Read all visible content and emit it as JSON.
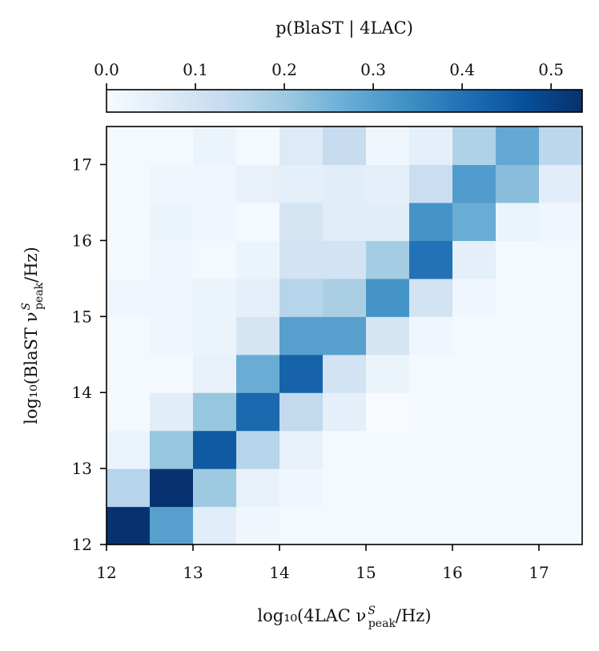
{
  "chart_data": {
    "type": "heatmap",
    "title": "",
    "xlabel": "log₁₀(4LAC ν",
    "ylabel": "log₁₀(BlaST ν",
    "label_sup": "S",
    "label_sub": "peak",
    "label_suffix": "/Hz)",
    "x_range": [
      12,
      17.5
    ],
    "y_range": [
      12,
      17.5
    ],
    "bin_width": 0.5,
    "x_ticks": [
      12,
      13,
      14,
      15,
      16,
      17
    ],
    "y_ticks": [
      12,
      13,
      14,
      15,
      16,
      17
    ],
    "colorbar": {
      "label": "p(BlaST | 4LAC)",
      "range": [
        0,
        0.535
      ],
      "ticks": [
        "0.0",
        "0.1",
        "0.2",
        "0.3",
        "0.4",
        "0.5"
      ],
      "tick_values": [
        0.0,
        0.1,
        0.2,
        0.3,
        0.4,
        0.5
      ],
      "colormap": "Blues"
    },
    "rows_note": "each row is one y bin, from y=12.0 (bottom) to y=17.0 (top); each value is for x bins 12.0 ... 17.0",
    "values": [
      [
        0.53,
        0.3,
        0.06,
        0.02,
        0.01,
        0.01,
        0.01,
        0.01,
        0.01,
        0.01,
        0.01
      ],
      [
        0.16,
        0.53,
        0.2,
        0.04,
        0.02,
        0.01,
        0.01,
        0.01,
        0.01,
        0.01,
        0.01
      ],
      [
        0.03,
        0.21,
        0.45,
        0.16,
        0.04,
        0.01,
        0.01,
        0.01,
        0.01,
        0.01,
        0.01
      ],
      [
        0.01,
        0.06,
        0.21,
        0.42,
        0.14,
        0.05,
        0.0,
        0.01,
        0.01,
        0.01,
        0.01
      ],
      [
        0.01,
        0.01,
        0.04,
        0.27,
        0.43,
        0.1,
        0.03,
        0.01,
        0.01,
        0.01,
        0.01
      ],
      [
        0.01,
        0.02,
        0.03,
        0.09,
        0.3,
        0.3,
        0.09,
        0.02,
        0.01,
        0.01,
        0.01
      ],
      [
        0.02,
        0.02,
        0.03,
        0.05,
        0.16,
        0.18,
        0.33,
        0.1,
        0.02,
        0.01,
        0.01
      ],
      [
        0.01,
        0.02,
        0.01,
        0.03,
        0.1,
        0.1,
        0.19,
        0.4,
        0.05,
        0.01,
        0.01
      ],
      [
        0.01,
        0.03,
        0.02,
        0.01,
        0.09,
        0.06,
        0.06,
        0.33,
        0.27,
        0.03,
        0.02
      ],
      [
        0.01,
        0.02,
        0.02,
        0.04,
        0.05,
        0.06,
        0.05,
        0.12,
        0.31,
        0.23,
        0.06
      ],
      [
        0.01,
        0.01,
        0.03,
        0.01,
        0.07,
        0.13,
        0.02,
        0.05,
        0.17,
        0.28,
        0.15
      ]
    ]
  }
}
